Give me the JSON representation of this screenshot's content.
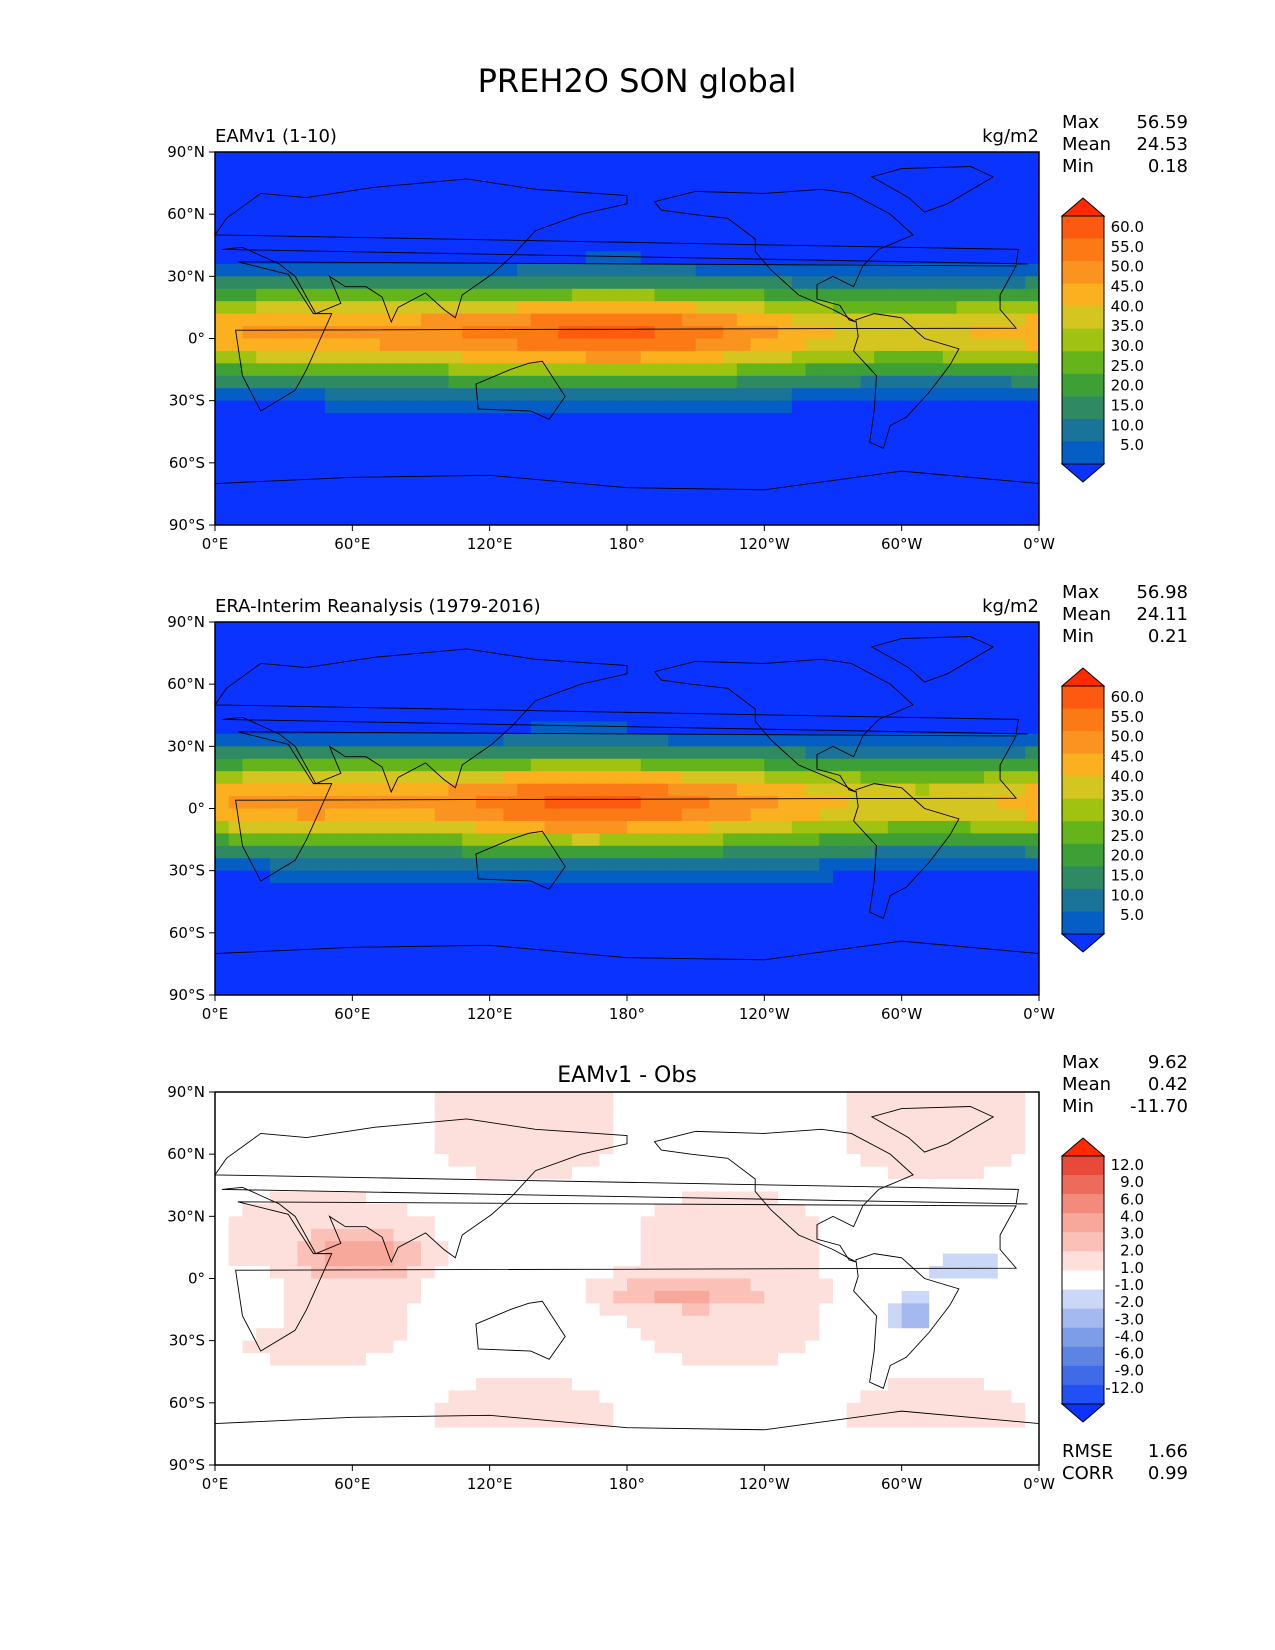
{
  "figure": {
    "title": "PREH2O SON global"
  },
  "axes_common": {
    "lat_ticks": [
      "90°N",
      "60°N",
      "30°N",
      "0°",
      "30°S",
      "60°S",
      "90°S"
    ],
    "lon_ticks": [
      "0°E",
      "60°E",
      "120°E",
      "180°",
      "120°W",
      "60°W",
      "0°W"
    ]
  },
  "panels": [
    {
      "id": "model",
      "left_title": "EAMv1 (1-10)",
      "center_title": "",
      "units": "kg/m2",
      "stats": [
        {
          "label": "Max",
          "value": "56.59"
        },
        {
          "label": "Mean",
          "value": "24.53"
        },
        {
          "label": "Min",
          "value": "0.18"
        }
      ],
      "colorbar_labels": [
        "60.0",
        "55.0",
        "50.0",
        "45.0",
        "40.0",
        "35.0",
        "30.0",
        "25.0",
        "20.0",
        "15.0",
        "10.0",
        "5.0"
      ],
      "extra_stats": []
    },
    {
      "id": "obs",
      "left_title": "ERA-Interim Reanalysis (1979-2016)",
      "center_title": "",
      "units": "kg/m2",
      "stats": [
        {
          "label": "Max",
          "value": "56.98"
        },
        {
          "label": "Mean",
          "value": "24.11"
        },
        {
          "label": "Min",
          "value": "0.21"
        }
      ],
      "colorbar_labels": [
        "60.0",
        "55.0",
        "50.0",
        "45.0",
        "40.0",
        "35.0",
        "30.0",
        "25.0",
        "20.0",
        "15.0",
        "10.0",
        "5.0"
      ],
      "extra_stats": []
    },
    {
      "id": "diff",
      "left_title": "",
      "center_title": "EAMv1 - Obs",
      "units": "",
      "stats": [
        {
          "label": "Max",
          "value": "9.62"
        },
        {
          "label": "Mean",
          "value": "0.42"
        },
        {
          "label": "Min",
          "value": "-11.70"
        }
      ],
      "colorbar_labels": [
        "12.0",
        "9.0",
        "6.0",
        "4.0",
        "3.0",
        "2.0",
        "1.0",
        "-1.0",
        "-2.0",
        "-3.0",
        "-4.0",
        "-6.0",
        "-9.0",
        "-12.0"
      ],
      "extra_stats": [
        {
          "label": "RMSE",
          "value": "1.66"
        },
        {
          "label": "CORR",
          "value": "0.99"
        }
      ]
    }
  ],
  "colors": {
    "abs_scale": [
      "#0a33ff",
      "#045ec4",
      "#1a7398",
      "#2f8a63",
      "#3d9f35",
      "#65b419",
      "#9fc310",
      "#d5c520",
      "#fbb11f",
      "#fb9320",
      "#fb7a16",
      "#fb5a10",
      "#ff2a00"
    ],
    "diff_scale": [
      "#0a33ff",
      "#2150f5",
      "#3f6ae8",
      "#5d84e5",
      "#7d9de8",
      "#a4b9f0",
      "#cbd7f7",
      "#ffffff",
      "#fde0dc",
      "#fbc1b8",
      "#f8a79b",
      "#f38b7d",
      "#ec6b5c",
      "#e74a3b",
      "#ff2a00"
    ]
  },
  "chart_data": [
    {
      "type": "heatmap",
      "title": "EAMv1 (1-10)",
      "units": "kg/m2",
      "lat_range": [
        -90,
        90
      ],
      "lon_range": [
        0,
        360
      ],
      "contour_levels": [
        5,
        10,
        15,
        20,
        25,
        30,
        35,
        40,
        45,
        50,
        55,
        60
      ],
      "stats": {
        "max": 56.59,
        "mean": 24.53,
        "min": 0.18
      }
    },
    {
      "type": "heatmap",
      "title": "ERA-Interim Reanalysis (1979-2016)",
      "units": "kg/m2",
      "lat_range": [
        -90,
        90
      ],
      "lon_range": [
        0,
        360
      ],
      "contour_levels": [
        5,
        10,
        15,
        20,
        25,
        30,
        35,
        40,
        45,
        50,
        55,
        60
      ],
      "stats": {
        "max": 56.98,
        "mean": 24.11,
        "min": 0.21
      }
    },
    {
      "type": "heatmap",
      "title": "EAMv1 - Obs",
      "lat_range": [
        -90,
        90
      ],
      "lon_range": [
        0,
        360
      ],
      "contour_levels": [
        -12,
        -9,
        -6,
        -4,
        -3,
        -2,
        -1,
        1,
        2,
        3,
        4,
        6,
        9,
        12
      ],
      "stats": {
        "max": 9.62,
        "mean": 0.42,
        "min": -11.7,
        "rmse": 1.66,
        "corr": 0.99
      }
    }
  ]
}
